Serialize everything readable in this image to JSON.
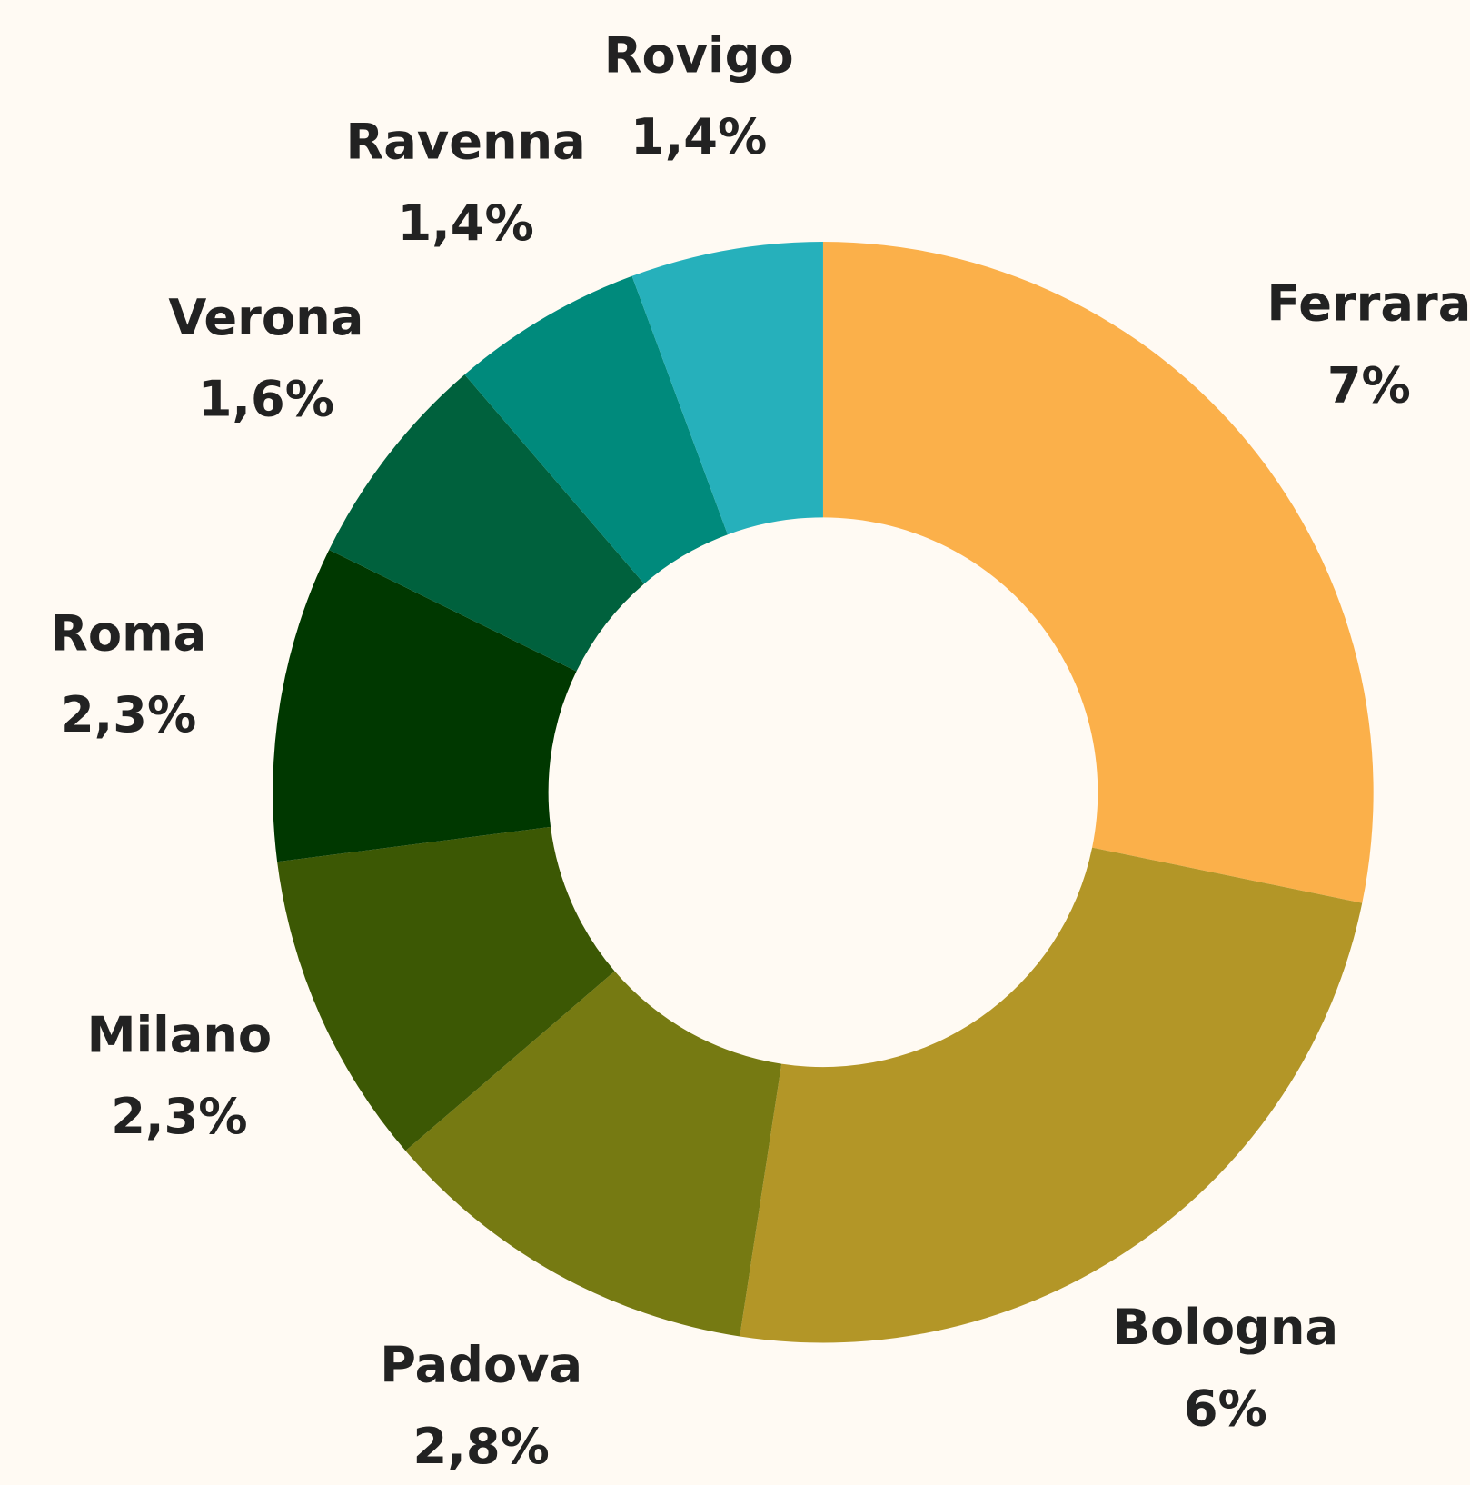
{
  "chart_data": {
    "type": "donut",
    "categories": [
      "Ferrara",
      "Bologna",
      "Padova",
      "Milano",
      "Roma",
      "Verona",
      "Ravenna",
      "Rovigo"
    ],
    "values": [
      7,
      6,
      2.8,
      2.3,
      2.3,
      1.6,
      1.4,
      1.4
    ],
    "value_labels": [
      "7%",
      "6%",
      "2,8%",
      "2,3%",
      "2,3%",
      "1,6%",
      "1,4%",
      "1,4%"
    ],
    "colors": [
      "#fbb04a",
      "#b39627",
      "#767a12",
      "#3c5804",
      "#003800",
      "#00613d",
      "#008a7c",
      "#26b0bb"
    ]
  }
}
